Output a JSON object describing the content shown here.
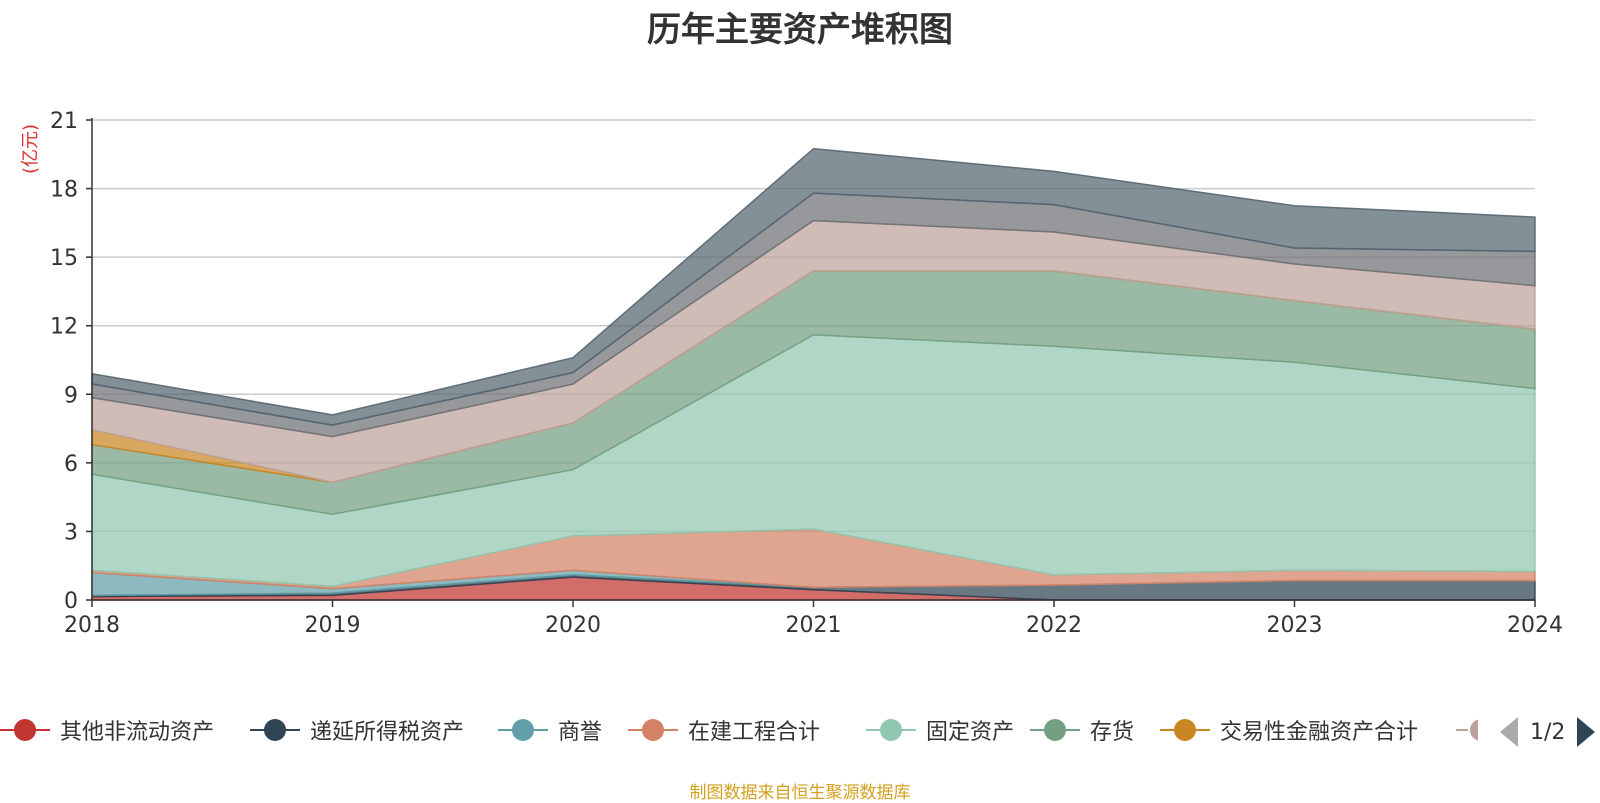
{
  "title": "历年主要资产堆积图",
  "source_note": "制图数据来自恒生聚源数据库",
  "pager": {
    "text": "1/2",
    "prev_icon": "triangle-left-icon",
    "next_icon": "triangle-right-icon"
  },
  "chart_data": {
    "type": "area",
    "stacked": true,
    "title": "历年主要资产堆积图",
    "ylabel": "(亿元)",
    "xlabel": "",
    "x": [
      "2018",
      "2019",
      "2020",
      "2021",
      "2022",
      "2023",
      "2024"
    ],
    "ylim": [
      0,
      21
    ],
    "yticks": [
      0,
      3,
      6,
      9,
      12,
      15,
      18,
      21
    ],
    "grid": true,
    "legend_position": "bottom",
    "series": [
      {
        "name": "其他非流动资产",
        "color": "#c23531",
        "values": [
          0.15,
          0.2,
          1.0,
          0.45,
          0.0,
          0.0,
          0.0
        ]
      },
      {
        "name": "递延所得税资产",
        "color": "#2f4554",
        "values": [
          0.05,
          0.1,
          0.1,
          0.1,
          0.65,
          0.85,
          0.85
        ]
      },
      {
        "name": "商誉",
        "color": "#61a0a8",
        "values": [
          1.0,
          0.2,
          0.2,
          0.0,
          0.0,
          0.0,
          0.0
        ]
      },
      {
        "name": "在建工程合计",
        "color": "#d48265",
        "values": [
          0.1,
          0.1,
          1.5,
          2.55,
          0.45,
          0.45,
          0.4
        ]
      },
      {
        "name": "固定资产",
        "color": "#91c7ae",
        "values": [
          4.2,
          3.15,
          2.9,
          8.5,
          10.0,
          9.1,
          8.0
        ]
      },
      {
        "name": "存货",
        "color": "#749f83",
        "values": [
          1.3,
          1.4,
          2.05,
          2.8,
          3.3,
          2.7,
          2.6
        ]
      },
      {
        "name": "交易性金融资产合计",
        "color": "#ca8622",
        "values": [
          0.65,
          0.0,
          0.0,
          0.0,
          0.0,
          0.0,
          0.0
        ]
      },
      {
        "name": "",
        "color": "#bda29a",
        "values": [
          1.4,
          2.0,
          1.7,
          2.2,
          1.7,
          1.6,
          1.9
        ]
      },
      {
        "name": "",
        "color": "#6e7074",
        "values": [
          0.6,
          0.5,
          0.5,
          1.2,
          1.2,
          0.7,
          1.5
        ]
      },
      {
        "name": "",
        "color": "#546570",
        "values": [
          0.45,
          0.45,
          0.65,
          1.95,
          1.45,
          1.85,
          1.5
        ]
      }
    ]
  }
}
